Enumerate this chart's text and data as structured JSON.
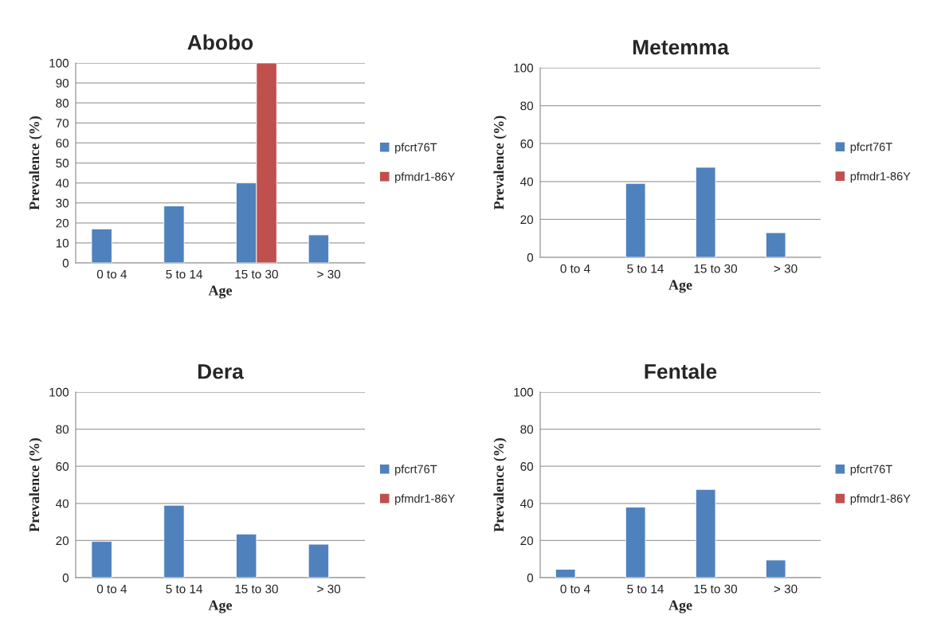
{
  "chart_data": [
    {
      "type": "bar",
      "title": "Abobo",
      "xlabel": "Age",
      "ylabel": "Prevalence (%)",
      "categories": [
        "0 to 4",
        "5 to 14",
        "15 to 30",
        "> 30"
      ],
      "series": [
        {
          "name": "pfcrt76T",
          "color": "#4f81bd",
          "values": [
            17,
            28.5,
            40,
            14
          ]
        },
        {
          "name": "pfmdr1-86Y",
          "color": "#c0504d",
          "values": [
            null,
            null,
            100,
            null
          ]
        }
      ],
      "ylim": [
        0,
        100
      ],
      "yticks": [
        0,
        10,
        20,
        30,
        40,
        50,
        60,
        70,
        80,
        90,
        100
      ],
      "grid": "y",
      "legend": "right"
    },
    {
      "type": "bar",
      "title": "Metemma",
      "xlabel": "Age",
      "ylabel": "Prevalence (%)",
      "categories": [
        "0 to 4",
        "5 to 14",
        "15 to 30",
        "> 30"
      ],
      "series": [
        {
          "name": "pfcrt76T",
          "color": "#4f81bd",
          "values": [
            null,
            39,
            47.5,
            13
          ]
        },
        {
          "name": "pfmdr1-86Y",
          "color": "#c0504d",
          "values": [
            null,
            null,
            null,
            null
          ]
        }
      ],
      "ylim": [
        0,
        100
      ],
      "yticks": [
        0,
        20,
        40,
        60,
        80,
        100
      ],
      "grid": "y",
      "legend": "right"
    },
    {
      "type": "bar",
      "title": "Dera",
      "xlabel": "Age",
      "ylabel": "Prevalence (%)",
      "categories": [
        "0 to 4",
        "5 to 14",
        "15 to 30",
        "> 30"
      ],
      "series": [
        {
          "name": "pfcrt76T",
          "color": "#4f81bd",
          "values": [
            19.5,
            39,
            23.5,
            18
          ]
        },
        {
          "name": "pfmdr1-86Y",
          "color": "#c0504d",
          "values": [
            null,
            null,
            null,
            null
          ]
        }
      ],
      "ylim": [
        0,
        100
      ],
      "yticks": [
        0,
        20,
        40,
        60,
        80,
        100
      ],
      "grid": "y",
      "legend": "right"
    },
    {
      "type": "bar",
      "title": "Fentale",
      "xlabel": "Age",
      "ylabel": "Prevalence (%)",
      "categories": [
        "0 to 4",
        "5 to 14",
        "15 to 30",
        "> 30"
      ],
      "series": [
        {
          "name": "pfcrt76T",
          "color": "#4f81bd",
          "values": [
            4.5,
            38,
            47.5,
            9.5
          ]
        },
        {
          "name": "pfmdr1-86Y",
          "color": "#c0504d",
          "values": [
            null,
            null,
            null,
            null
          ]
        }
      ],
      "ylim": [
        0,
        100
      ],
      "yticks": [
        0,
        20,
        40,
        60,
        80,
        100
      ],
      "grid": "y",
      "legend": "right"
    }
  ]
}
